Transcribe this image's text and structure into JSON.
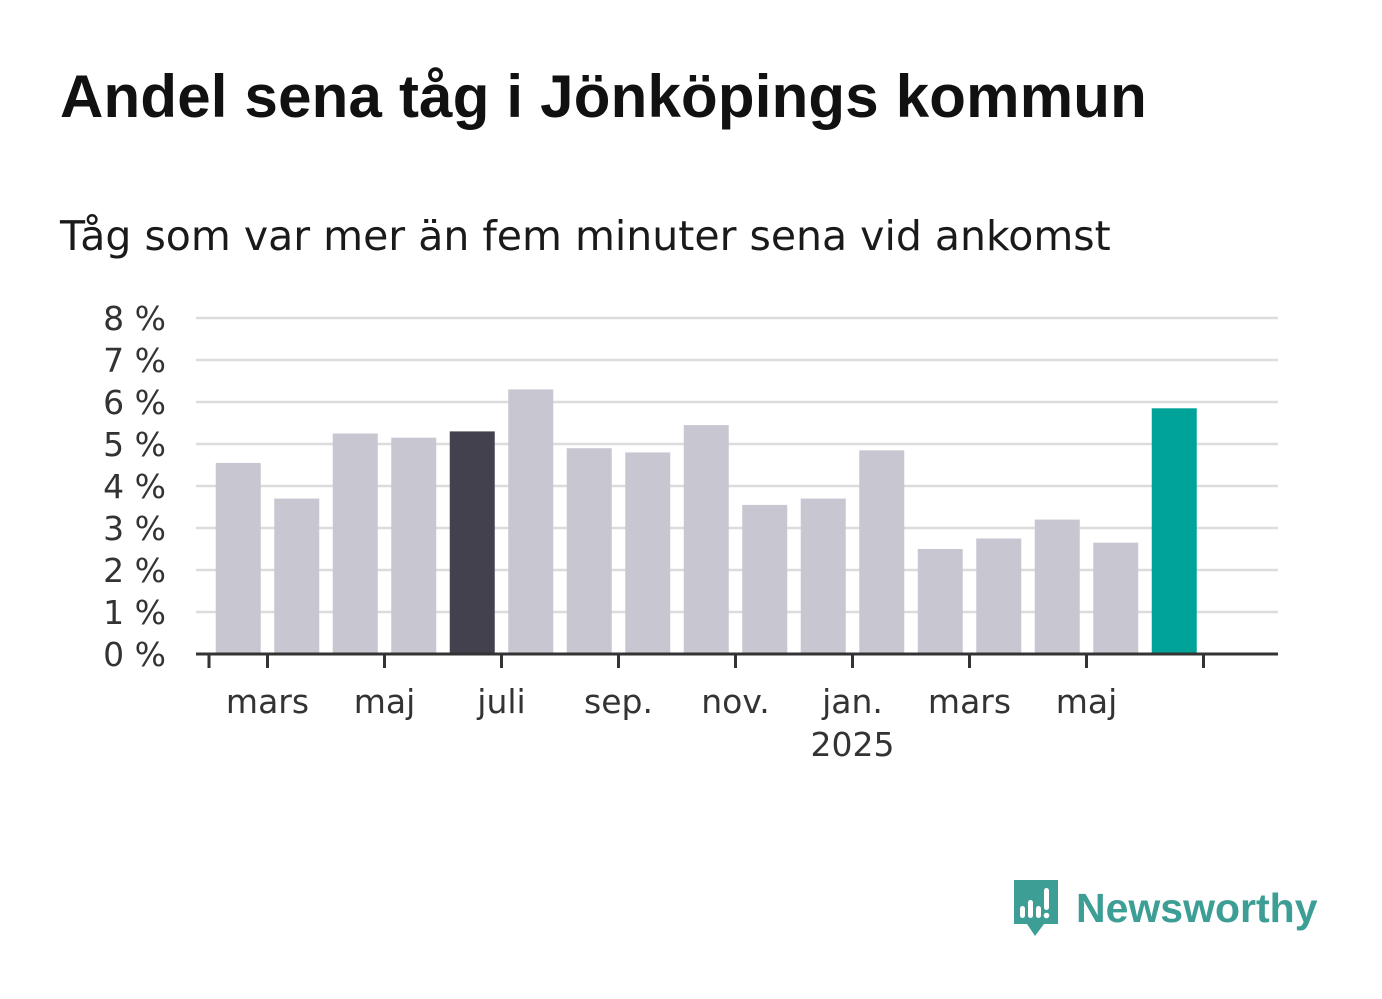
{
  "title": "Andel sena tåg i Jönköpings kommun",
  "subtitle": "Tåg som var mer än fem minuter sena vid ankomst",
  "logo": {
    "text": "Newsworthy",
    "icon": "newsworthy-bar-chart-icon"
  },
  "colors": {
    "bar": "#c8c7d1",
    "bar_highlight_dark": "#43414d",
    "bar_highlight_accent": "#00a398",
    "gridline": "#dcdcdc",
    "axis": "#333333",
    "text": "#333333",
    "brand": "#3d9e96"
  },
  "chart_data": {
    "type": "bar",
    "x": [
      "2024-02",
      "2024-03",
      "2024-04",
      "2024-05",
      "2024-06",
      "2024-07",
      "2024-08",
      "2024-09",
      "2024-10",
      "2024-11",
      "2024-12",
      "2025-01",
      "2025-02",
      "2025-03",
      "2025-04",
      "2025-05",
      "2025-06"
    ],
    "values": [
      4.55,
      3.7,
      5.25,
      5.15,
      5.3,
      6.3,
      4.9,
      4.8,
      5.45,
      3.55,
      3.7,
      4.85,
      2.5,
      2.75,
      3.2,
      2.65,
      5.85
    ],
    "highlight": {
      "2024-06": "dark",
      "2025-06": "accent"
    },
    "yticks": [
      "0 %",
      "1 %",
      "2 %",
      "3 %",
      "4 %",
      "5 %",
      "6 %",
      "7 %",
      "8 %"
    ],
    "ylim": [
      0,
      8
    ],
    "xticks": [
      {
        "month": "2024-03",
        "label": "mars"
      },
      {
        "month": "2024-05",
        "label": "maj"
      },
      {
        "month": "2024-07",
        "label": "juli"
      },
      {
        "month": "2024-09",
        "label": "sep."
      },
      {
        "month": "2024-11",
        "label": "nov."
      },
      {
        "month": "2025-01",
        "label": "jan.",
        "sublabel": "2025"
      },
      {
        "month": "2025-03",
        "label": "mars"
      },
      {
        "month": "2025-05",
        "label": "maj"
      }
    ],
    "xlabel": "",
    "ylabel": "",
    "grid": true,
    "legend": "none"
  }
}
